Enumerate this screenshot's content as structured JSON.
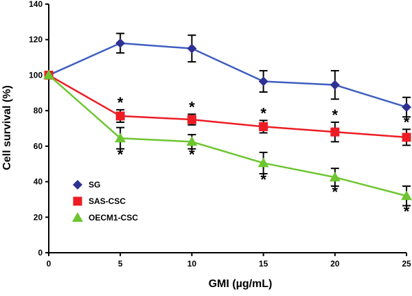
{
  "chart_data": {
    "type": "line",
    "title": "",
    "xlabel": "GMI (µg/mL)",
    "ylabel": "Cell survival (%)",
    "x": [
      0,
      5,
      10,
      15,
      20,
      25
    ],
    "xlim": [
      0,
      25
    ],
    "ylim": [
      0,
      140
    ],
    "xticks": [
      "0",
      "5",
      "10",
      "15",
      "20",
      "25"
    ],
    "yticks": [
      "0",
      "20",
      "40",
      "60",
      "80",
      "100",
      "120",
      "140"
    ],
    "grid": false,
    "legend_position": "bottom-left",
    "significance_marker": "*",
    "series": [
      {
        "name": "SG",
        "color": "#2e3192",
        "line_color": "#3f5fbf",
        "marker": "diamond",
        "values": [
          100,
          118,
          115,
          96.5,
          94.5,
          82
        ],
        "errors": [
          0,
          5.5,
          7.5,
          6,
          8,
          5.5
        ],
        "significance": []
      },
      {
        "name": "SAS-CSC",
        "color": "#ed1c24",
        "line_color": "#ed1c24",
        "marker": "square",
        "values": [
          100,
          77,
          75,
          71,
          68,
          65
        ],
        "errors": [
          0,
          3.5,
          3,
          3.5,
          5.5,
          4.5
        ],
        "significance": [
          false,
          true,
          true,
          true,
          true,
          true
        ]
      },
      {
        "name": "OECM1-CSC",
        "color": "#6dc530",
        "line_color": "#6dc530",
        "marker": "triangle",
        "values": [
          100,
          64.5,
          62.5,
          50.5,
          42.5,
          32
        ],
        "errors": [
          0,
          6,
          4,
          6,
          5,
          5.5
        ],
        "significance": [
          false,
          true,
          true,
          true,
          true,
          true
        ]
      }
    ]
  }
}
